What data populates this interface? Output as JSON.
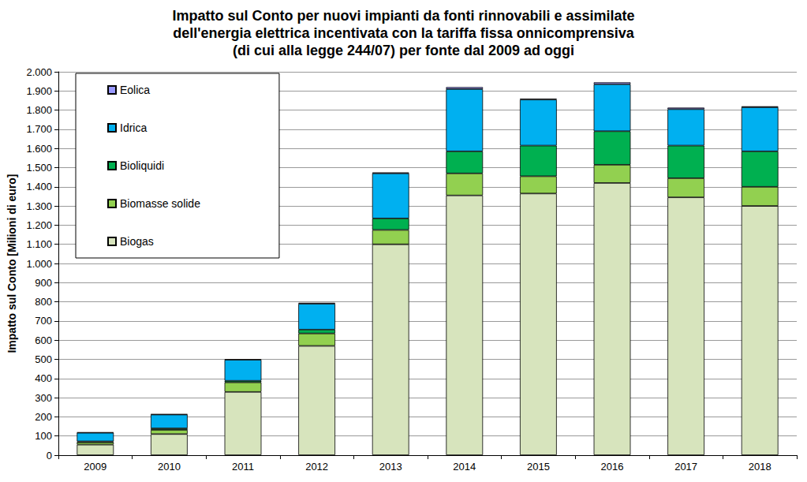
{
  "chart_data": {
    "type": "bar",
    "title": "Impatto sul Conto per nuovi impianti da fonti rinnovabili e assimilate\ndell'energia elettrica incentivata con la tariffa fissa onnicomprensiva\n(di cui alla legge 244/07) per fonte dal 2009 ad oggi",
    "y_label": "Impatto sul Conto [Milioni di euro]",
    "categories": [
      "2009",
      "2010",
      "2011",
      "2012",
      "2013",
      "2014",
      "2015",
      "2016",
      "2017",
      "2018"
    ],
    "series": [
      {
        "name": "Biogas",
        "color": "#d7e4bd",
        "values": [
          55,
          110,
          330,
          570,
          1100,
          1355,
          1365,
          1420,
          1345,
          1300
        ]
      },
      {
        "name": "Biomasse solide",
        "color": "#92d050",
        "values": [
          12,
          22,
          50,
          65,
          75,
          115,
          90,
          95,
          100,
          100
        ]
      },
      {
        "name": "Bioliquidi",
        "color": "#00b050",
        "values": [
          5,
          8,
          8,
          20,
          60,
          115,
          160,
          175,
          170,
          185
        ]
      },
      {
        "name": "Idrica",
        "color": "#00b0f0",
        "values": [
          45,
          72,
          110,
          135,
          235,
          325,
          240,
          245,
          190,
          230
        ]
      },
      {
        "name": "Eolica",
        "color": "#9999ff",
        "values": [
          2,
          2,
          2,
          5,
          5,
          10,
          5,
          10,
          8,
          5
        ]
      }
    ],
    "stacked": true,
    "ylim": [
      0,
      2000
    ],
    "yticks": [
      0,
      100,
      200,
      300,
      400,
      500,
      600,
      700,
      800,
      900,
      {
        "value": 1000,
        "label": "1.000"
      },
      {
        "value": 1100,
        "label": "1.100"
      },
      {
        "value": 1200,
        "label": "1.200"
      },
      {
        "value": 1300,
        "label": "1.300"
      },
      {
        "value": 1400,
        "label": "1.400"
      },
      {
        "value": 1500,
        "label": "1.500"
      },
      {
        "value": 1600,
        "label": "1.600"
      },
      {
        "value": 1700,
        "label": "1.700"
      },
      {
        "value": 1800,
        "label": "1.800"
      },
      {
        "value": 1900,
        "label": "1.900"
      },
      {
        "value": 2000,
        "label": "2.000"
      }
    ],
    "grid": true,
    "legend": "top-left"
  }
}
